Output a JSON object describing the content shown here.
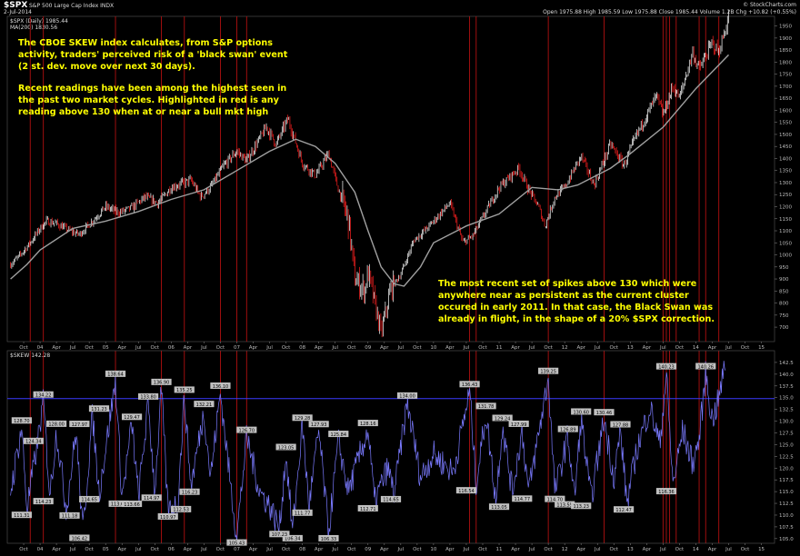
{
  "header": {
    "symbol": "$SPX",
    "title": "S&P 500 Large Cap Index  INDX",
    "date": "2-Jul-2014",
    "watermark": "© StockCharts.com",
    "ohlc": "Open 1975.88  High 1985.59  Low 1975.88  Close 1985.44  Volume 1.2B  Chg +10.82 (+0.55%)",
    "legend_price": "$SPX (Daily) 1985.44",
    "legend_ma": "MA(200) 1830.56",
    "legend_skew": "$SKEW 142.28"
  },
  "annotations": {
    "para1_lines": [
      "The CBOE SKEW index calculates, from S&P options",
      "activity, traders' perceived risk of a 'black swan' event",
      "(2 st. dev. move over next 30 days)."
    ],
    "para2_lines": [
      "Recent readings have been among the highest seen in",
      "the past two market cycles. Highlighted in red is any",
      "reading above 130 when at or near a bull mkt high"
    ],
    "para3_lines": [
      "The most recent set of spikes above 130 which were",
      "anywhere near as persistent as the current cluster",
      "occured in early 2011. In that case, the Black Swan was",
      "already in flight, in the shape of a 20% $SPX correction."
    ]
  },
  "colors": {
    "background": "#000000",
    "price_up": "#ffffff",
    "price_down": "#ff2020",
    "moving_average": "#a0a0a0",
    "skew_line": "#7a7aff",
    "threshold": "#3a3aff",
    "highlight": "#b01010",
    "annotation": "#ffff00"
  },
  "chart_data": [
    {
      "type": "line",
      "name": "price-panel",
      "series_label": "$SPX (Daily)",
      "ma_label": "MA(200)",
      "ylim": [
        640,
        1990
      ],
      "yticks": [
        700,
        750,
        800,
        850,
        900,
        950,
        1000,
        1050,
        1100,
        1150,
        1200,
        1250,
        1300,
        1350,
        1400,
        1450,
        1500,
        1550,
        1600,
        1650,
        1700,
        1750,
        1800,
        1850,
        1900,
        1950
      ],
      "xlim": [
        2003.5,
        2015.2
      ],
      "xticks": [
        {
          "t": 2003.75,
          "label": "Oct"
        },
        {
          "t": 2004.0,
          "label": "04"
        },
        {
          "t": 2004.25,
          "label": "Apr"
        },
        {
          "t": 2004.5,
          "label": "Jul"
        },
        {
          "t": 2004.75,
          "label": "Oct"
        },
        {
          "t": 2005.0,
          "label": "05"
        },
        {
          "t": 2005.25,
          "label": "Apr"
        },
        {
          "t": 2005.5,
          "label": "Jul"
        },
        {
          "t": 2005.75,
          "label": "Oct"
        },
        {
          "t": 2006.0,
          "label": "06"
        },
        {
          "t": 2006.25,
          "label": "Apr"
        },
        {
          "t": 2006.5,
          "label": "Jul"
        },
        {
          "t": 2006.75,
          "label": "Oct"
        },
        {
          "t": 2007.0,
          "label": "07"
        },
        {
          "t": 2007.25,
          "label": "Apr"
        },
        {
          "t": 2007.5,
          "label": "Jul"
        },
        {
          "t": 2007.75,
          "label": "Oct"
        },
        {
          "t": 2008.0,
          "label": "08"
        },
        {
          "t": 2008.25,
          "label": "Apr"
        },
        {
          "t": 2008.5,
          "label": "Jul"
        },
        {
          "t": 2008.75,
          "label": "Oct"
        },
        {
          "t": 2009.0,
          "label": "09"
        },
        {
          "t": 2009.25,
          "label": "Apr"
        },
        {
          "t": 2009.5,
          "label": "Jul"
        },
        {
          "t": 2009.75,
          "label": "Oct"
        },
        {
          "t": 2010.0,
          "label": "10"
        },
        {
          "t": 2010.25,
          "label": "Apr"
        },
        {
          "t": 2010.5,
          "label": "Jul"
        },
        {
          "t": 2010.75,
          "label": "Oct"
        },
        {
          "t": 2011.0,
          "label": "11"
        },
        {
          "t": 2011.25,
          "label": "Apr"
        },
        {
          "t": 2011.5,
          "label": "Jul"
        },
        {
          "t": 2011.75,
          "label": "Oct"
        },
        {
          "t": 2012.0,
          "label": "12"
        },
        {
          "t": 2012.25,
          "label": "Apr"
        },
        {
          "t": 2012.5,
          "label": "Jul"
        },
        {
          "t": 2012.75,
          "label": "Oct"
        },
        {
          "t": 2013.0,
          "label": "13"
        },
        {
          "t": 2013.25,
          "label": "Apr"
        },
        {
          "t": 2013.5,
          "label": "Jul"
        },
        {
          "t": 2013.75,
          "label": "Oct"
        },
        {
          "t": 2014.0,
          "label": "14"
        },
        {
          "t": 2014.25,
          "label": "Apr"
        },
        {
          "t": 2014.5,
          "label": "Jul"
        },
        {
          "t": 2014.75,
          "label": "Oct"
        },
        {
          "t": 2015.0,
          "label": "15"
        }
      ],
      "price_path": [
        [
          2003.55,
          960
        ],
        [
          2003.7,
          1000
        ],
        [
          2003.85,
          1050
        ],
        [
          2004.0,
          1110
        ],
        [
          2004.1,
          1140
        ],
        [
          2004.25,
          1130
        ],
        [
          2004.45,
          1100
        ],
        [
          2004.6,
          1085
        ],
        [
          2004.8,
          1140
        ],
        [
          2005.0,
          1200
        ],
        [
          2005.2,
          1175
        ],
        [
          2005.4,
          1195
        ],
        [
          2005.6,
          1240
        ],
        [
          2005.8,
          1215
        ],
        [
          2006.0,
          1280
        ],
        [
          2006.3,
          1310
        ],
        [
          2006.45,
          1240
        ],
        [
          2006.6,
          1280
        ],
        [
          2006.8,
          1370
        ],
        [
          2007.0,
          1430
        ],
        [
          2007.15,
          1390
        ],
        [
          2007.45,
          1530
        ],
        [
          2007.6,
          1460
        ],
        [
          2007.78,
          1565
        ],
        [
          2008.0,
          1380
        ],
        [
          2008.2,
          1330
        ],
        [
          2008.4,
          1420
        ],
        [
          2008.55,
          1270
        ],
        [
          2008.7,
          1150
        ],
        [
          2008.8,
          900
        ],
        [
          2008.95,
          850
        ],
        [
          2009.0,
          930
        ],
        [
          2009.15,
          740
        ],
        [
          2009.2,
          676
        ],
        [
          2009.35,
          860
        ],
        [
          2009.5,
          920
        ],
        [
          2009.7,
          1060
        ],
        [
          2009.9,
          1110
        ],
        [
          2010.25,
          1215
        ],
        [
          2010.45,
          1050
        ],
        [
          2010.6,
          1080
        ],
        [
          2010.8,
          1180
        ],
        [
          2011.0,
          1280
        ],
        [
          2011.3,
          1360
        ],
        [
          2011.45,
          1270
        ],
        [
          2011.6,
          1200
        ],
        [
          2011.7,
          1120
        ],
        [
          2011.85,
          1240
        ],
        [
          2012.0,
          1280
        ],
        [
          2012.25,
          1410
        ],
        [
          2012.45,
          1290
        ],
        [
          2012.7,
          1460
        ],
        [
          2012.9,
          1370
        ],
        [
          2013.1,
          1500
        ],
        [
          2013.4,
          1660
        ],
        [
          2013.5,
          1580
        ],
        [
          2013.65,
          1700
        ],
        [
          2013.75,
          1650
        ],
        [
          2013.95,
          1840
        ],
        [
          2014.05,
          1770
        ],
        [
          2014.25,
          1880
        ],
        [
          2014.35,
          1840
        ],
        [
          2014.5,
          1985
        ]
      ],
      "ma_path": [
        [
          2003.55,
          900
        ],
        [
          2003.8,
          960
        ],
        [
          2004.0,
          1020
        ],
        [
          2004.5,
          1110
        ],
        [
          2005.0,
          1140
        ],
        [
          2005.5,
          1180
        ],
        [
          2006.0,
          1230
        ],
        [
          2006.5,
          1270
        ],
        [
          2007.0,
          1350
        ],
        [
          2007.5,
          1430
        ],
        [
          2007.9,
          1480
        ],
        [
          2008.2,
          1450
        ],
        [
          2008.5,
          1380
        ],
        [
          2008.8,
          1260
        ],
        [
          2009.0,
          1100
        ],
        [
          2009.2,
          950
        ],
        [
          2009.4,
          880
        ],
        [
          2009.55,
          870
        ],
        [
          2009.8,
          950
        ],
        [
          2010.0,
          1050
        ],
        [
          2010.5,
          1120
        ],
        [
          2011.0,
          1170
        ],
        [
          2011.5,
          1280
        ],
        [
          2011.9,
          1270
        ],
        [
          2012.2,
          1290
        ],
        [
          2012.7,
          1360
        ],
        [
          2013.0,
          1420
        ],
        [
          2013.5,
          1530
        ],
        [
          2014.0,
          1690
        ],
        [
          2014.5,
          1830
        ]
      ]
    },
    {
      "type": "line",
      "name": "skew-panel",
      "series_label": "$SKEW",
      "ylim": [
        104,
        145
      ],
      "yticks": [
        105.0,
        107.5,
        110.0,
        112.5,
        115.0,
        117.5,
        120.0,
        122.5,
        125.0,
        127.5,
        130.0,
        132.5,
        135.0,
        137.5,
        140.0,
        142.5
      ],
      "threshold": 134.8,
      "labels_above": [
        {
          "t": 2003.72,
          "v": 128.7
        },
        {
          "t": 2003.9,
          "v": 124.34
        },
        {
          "t": 2004.05,
          "v": 134.22
        },
        {
          "t": 2004.25,
          "v": 128.0
        },
        {
          "t": 2004.6,
          "v": 127.97
        },
        {
          "t": 2004.9,
          "v": 131.23
        },
        {
          "t": 2005.15,
          "v": 138.64
        },
        {
          "t": 2005.4,
          "v": 129.47
        },
        {
          "t": 2005.65,
          "v": 133.8
        },
        {
          "t": 2005.85,
          "v": 136.9
        },
        {
          "t": 2006.2,
          "v": 135.25
        },
        {
          "t": 2006.5,
          "v": 132.21
        },
        {
          "t": 2006.75,
          "v": 136.1
        },
        {
          "t": 2007.15,
          "v": 126.7
        },
        {
          "t": 2007.75,
          "v": 123.05
        },
        {
          "t": 2008.0,
          "v": 129.28
        },
        {
          "t": 2008.25,
          "v": 127.93
        },
        {
          "t": 2008.55,
          "v": 125.84
        },
        {
          "t": 2009.0,
          "v": 128.16
        },
        {
          "t": 2009.6,
          "v": 134.0
        },
        {
          "t": 2010.55,
          "v": 136.43
        },
        {
          "t": 2010.8,
          "v": 131.78
        },
        {
          "t": 2011.05,
          "v": 129.24
        },
        {
          "t": 2011.3,
          "v": 127.99
        },
        {
          "t": 2011.75,
          "v": 139.25
        },
        {
          "t": 2012.05,
          "v": 126.89
        },
        {
          "t": 2012.25,
          "v": 130.6
        },
        {
          "t": 2012.6,
          "v": 130.46
        },
        {
          "t": 2012.85,
          "v": 127.88
        },
        {
          "t": 2013.55,
          "v": 140.23
        },
        {
          "t": 2014.15,
          "v": 140.26
        }
      ],
      "labels_below": [
        {
          "t": 2003.72,
          "v": 111.31
        },
        {
          "t": 2004.05,
          "v": 114.23
        },
        {
          "t": 2004.45,
          "v": 111.18
        },
        {
          "t": 2004.6,
          "v": 106.42
        },
        {
          "t": 2004.75,
          "v": 114.65
        },
        {
          "t": 2005.2,
          "v": 113.69
        },
        {
          "t": 2005.4,
          "v": 113.66
        },
        {
          "t": 2005.7,
          "v": 114.97
        },
        {
          "t": 2005.95,
          "v": 110.97
        },
        {
          "t": 2006.15,
          "v": 112.53
        },
        {
          "t": 2006.28,
          "v": 116.23
        },
        {
          "t": 2007.0,
          "v": 105.43
        },
        {
          "t": 2007.85,
          "v": 106.34
        },
        {
          "t": 2007.65,
          "v": 107.23
        },
        {
          "t": 2008.0,
          "v": 111.77
        },
        {
          "t": 2008.4,
          "v": 106.33
        },
        {
          "t": 2009.0,
          "v": 112.71
        },
        {
          "t": 2009.35,
          "v": 114.65
        },
        {
          "t": 2010.5,
          "v": 116.54
        },
        {
          "t": 2011.0,
          "v": 113.05
        },
        {
          "t": 2011.35,
          "v": 114.77
        },
        {
          "t": 2011.85,
          "v": 114.7
        },
        {
          "t": 2012.0,
          "v": 113.55
        },
        {
          "t": 2012.25,
          "v": 113.23
        },
        {
          "t": 2012.9,
          "v": 112.47
        },
        {
          "t": 2013.55,
          "v": 116.36
        }
      ],
      "path": [
        [
          2003.55,
          115
        ],
        [
          2003.72,
          128.7
        ],
        [
          2003.8,
          111.3
        ],
        [
          2003.95,
          124.3
        ],
        [
          2004.05,
          134.2
        ],
        [
          2004.15,
          114.2
        ],
        [
          2004.25,
          128
        ],
        [
          2004.4,
          111.2
        ],
        [
          2004.55,
          128
        ],
        [
          2004.65,
          106.4
        ],
        [
          2004.8,
          131.2
        ],
        [
          2004.9,
          114.7
        ],
        [
          2005.15,
          138.6
        ],
        [
          2005.25,
          113.7
        ],
        [
          2005.4,
          129.5
        ],
        [
          2005.5,
          113.7
        ],
        [
          2005.65,
          133.8
        ],
        [
          2005.75,
          115
        ],
        [
          2005.85,
          136.9
        ],
        [
          2005.95,
          111
        ],
        [
          2006.1,
          112.5
        ],
        [
          2006.2,
          135.3
        ],
        [
          2006.3,
          116.2
        ],
        [
          2006.5,
          132.2
        ],
        [
          2006.6,
          118
        ],
        [
          2006.75,
          136.1
        ],
        [
          2006.9,
          117
        ],
        [
          2007.0,
          105.4
        ],
        [
          2007.15,
          126.7
        ],
        [
          2007.35,
          115
        ],
        [
          2007.5,
          112
        ],
        [
          2007.65,
          107.2
        ],
        [
          2007.75,
          123.1
        ],
        [
          2007.85,
          106.3
        ],
        [
          2008.0,
          129.3
        ],
        [
          2008.1,
          111.8
        ],
        [
          2008.25,
          127.9
        ],
        [
          2008.4,
          106.3
        ],
        [
          2008.55,
          125.8
        ],
        [
          2008.7,
          115
        ],
        [
          2009.0,
          128.2
        ],
        [
          2009.1,
          112.7
        ],
        [
          2009.3,
          120
        ],
        [
          2009.4,
          114.7
        ],
        [
          2009.6,
          134
        ],
        [
          2009.8,
          118
        ],
        [
          2010.0,
          123
        ],
        [
          2010.3,
          119
        ],
        [
          2010.55,
          136.4
        ],
        [
          2010.65,
          116.5
        ],
        [
          2010.8,
          131.8
        ],
        [
          2010.95,
          113.1
        ],
        [
          2011.05,
          129.2
        ],
        [
          2011.2,
          115
        ],
        [
          2011.35,
          128
        ],
        [
          2011.45,
          114.8
        ],
        [
          2011.75,
          139.3
        ],
        [
          2011.85,
          114.7
        ],
        [
          2012.05,
          126.9
        ],
        [
          2012.15,
          113.6
        ],
        [
          2012.25,
          130.6
        ],
        [
          2012.4,
          113.2
        ],
        [
          2012.6,
          130.5
        ],
        [
          2012.75,
          118
        ],
        [
          2012.85,
          127.9
        ],
        [
          2012.95,
          112.5
        ],
        [
          2013.1,
          124
        ],
        [
          2013.3,
          133
        ],
        [
          2013.45,
          125
        ],
        [
          2013.55,
          140.2
        ],
        [
          2013.65,
          116.4
        ],
        [
          2013.8,
          128
        ],
        [
          2013.95,
          121
        ],
        [
          2014.05,
          126
        ],
        [
          2014.15,
          140.3
        ],
        [
          2014.25,
          130
        ],
        [
          2014.35,
          134.8
        ],
        [
          2014.45,
          142.3
        ]
      ]
    }
  ],
  "highlight_times": [
    2003.85,
    2004.05,
    2005.15,
    2005.85,
    2006.2,
    2006.75,
    2007.0,
    2007.15,
    2010.55,
    2010.65,
    2011.75,
    2012.6,
    2013.5,
    2013.55,
    2013.6,
    2013.7,
    2014.05,
    2014.15,
    2014.35
  ]
}
